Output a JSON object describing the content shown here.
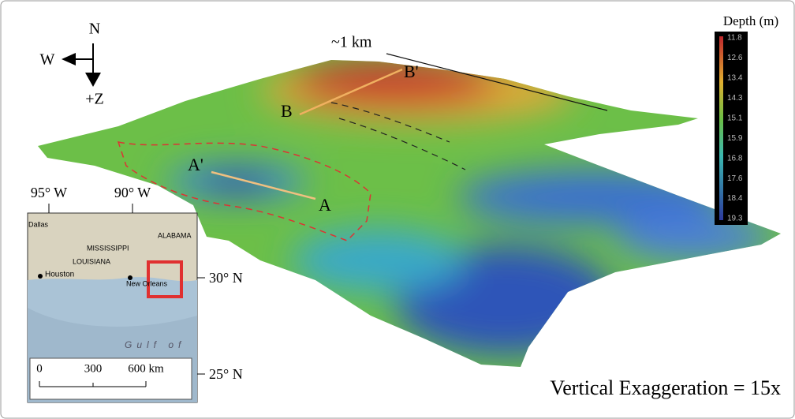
{
  "compass": {
    "north": "N",
    "west": "W",
    "down": "+Z"
  },
  "scale_note": "~1 km",
  "profiles": {
    "b_end": "B'",
    "b_start": "B",
    "a_end": "A'",
    "a_start": "A"
  },
  "colorbar": {
    "title": "Depth (m)",
    "ticks": [
      11.8,
      12.6,
      13.4,
      14.3,
      15.1,
      15.9,
      16.8,
      17.6,
      18.4,
      19.3
    ]
  },
  "inset": {
    "lon_labels": [
      "95° W",
      "90° W"
    ],
    "lat_labels": [
      "30° N",
      "25° N"
    ],
    "places": [
      "Dallas",
      "MISSISSIPPI",
      "ALABAMA",
      "LOUISIANA",
      "Houston",
      "New Orleans",
      "Gulf of"
    ],
    "scale_labels": [
      "0",
      "300",
      "600 km"
    ]
  },
  "exaggeration": "Vertical Exaggeration = 15x"
}
